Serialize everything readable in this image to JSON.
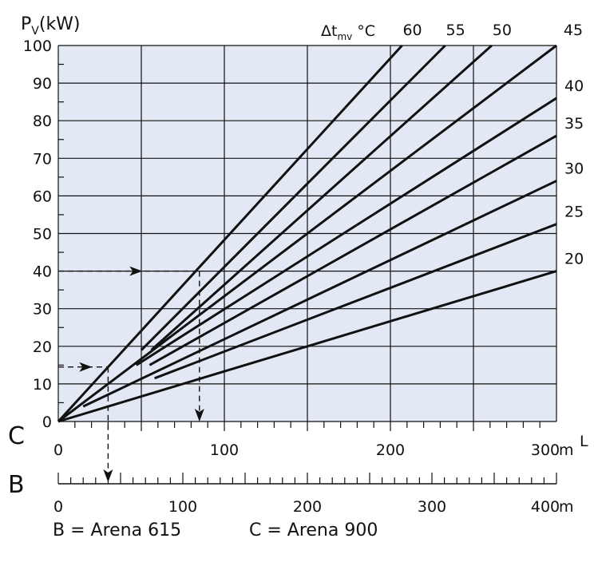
{
  "colors": {
    "plot_bg": "#e3e9f4",
    "ink": "#111111"
  },
  "chart_data": {
    "type": "line",
    "ylabel_main": "P",
    "ylabel_sub": "V",
    "ylabel_unit": "(kW)",
    "series_title_main": "Δt",
    "series_title_sub": "mv",
    "series_title_unit": " °C",
    "x_axis_letter": "L",
    "ylim": [
      0,
      100
    ],
    "xlim": [
      0,
      300
    ],
    "grid": true,
    "y_ticks": [
      0,
      10,
      20,
      30,
      40,
      50,
      60,
      70,
      80,
      90,
      100
    ],
    "x_ticks": [
      0,
      100,
      200,
      300
    ],
    "x_unit": "m",
    "series": [
      {
        "name": "60",
        "x": [
          0,
          207
        ],
        "y": [
          0,
          100
        ]
      },
      {
        "name": "55",
        "x": [
          50,
          233
        ],
        "y": [
          19,
          100
        ]
      },
      {
        "name": "50",
        "x": [
          56,
          261
        ],
        "y": [
          19,
          100
        ]
      },
      {
        "name": "45",
        "x": [
          0,
          300
        ],
        "y": [
          0,
          100
        ]
      },
      {
        "name": "40",
        "x": [
          47,
          300
        ],
        "y": [
          15,
          86
        ]
      },
      {
        "name": "35",
        "x": [
          55,
          300
        ],
        "y": [
          15,
          76
        ]
      },
      {
        "name": "30",
        "x": [
          15,
          300
        ],
        "y": [
          4,
          64
        ]
      },
      {
        "name": "25",
        "x": [
          58,
          300
        ],
        "y": [
          11.5,
          52.5
        ]
      },
      {
        "name": "20",
        "x": [
          0,
          300
        ],
        "y": [
          0,
          40
        ]
      }
    ],
    "examples": [
      {
        "y": 40,
        "x_meet": 85,
        "x_drop": 85,
        "drop_to_y": 0,
        "drop_to_scale": null
      },
      {
        "y": 14.5,
        "x_meet": 30,
        "x_drop": 30,
        "drop_to_y": null,
        "drop_to_scale": "B"
      }
    ],
    "scale_C": {
      "label": "C",
      "ticks": [
        0,
        100,
        200,
        300
      ],
      "unit": "m",
      "max": 300
    },
    "scale_B": {
      "label": "B",
      "ticks": [
        0,
        100,
        200,
        300,
        400
      ],
      "unit": "m",
      "max": 400
    }
  },
  "caption": {
    "b": "B = Arena 615",
    "c": "C =  Arena 900"
  }
}
